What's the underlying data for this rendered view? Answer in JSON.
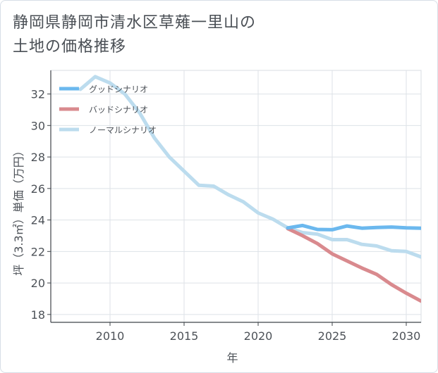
{
  "title": "静岡県静岡市清水区草薙一里山の\n土地の価格推移",
  "chart_data": {
    "type": "line",
    "xlabel": "年",
    "ylabel": "坪（3.3㎡）単価（万円）",
    "xlim": [
      2006,
      2031
    ],
    "ylim": [
      17.5,
      33.5
    ],
    "xticks": [
      2010,
      2015,
      2020,
      2025,
      2030
    ],
    "yticks": [
      18,
      20,
      22,
      24,
      26,
      28,
      30,
      32
    ],
    "grid": true,
    "legend_position": "top-left",
    "series": [
      {
        "name": "グッドシナリオ",
        "color": "#6bb8ee",
        "x": [
          2022,
          2023,
          2024,
          2025,
          2026,
          2027,
          2028,
          2029,
          2030,
          2031
        ],
        "y": [
          23.5,
          23.65,
          23.4,
          23.38,
          23.62,
          23.48,
          23.52,
          23.55,
          23.5,
          23.48
        ]
      },
      {
        "name": "バッドシナリオ",
        "color": "#d98a8e",
        "x": [
          2022,
          2023,
          2024,
          2025,
          2026,
          2027,
          2028,
          2029,
          2030,
          2031
        ],
        "y": [
          23.45,
          23.0,
          22.5,
          21.85,
          21.4,
          20.95,
          20.55,
          19.9,
          19.35,
          18.85
        ]
      },
      {
        "name": "ノーマルシナリオ",
        "color": "#bcdcee",
        "x": [
          2008,
          2009,
          2010,
          2011,
          2012,
          2013,
          2014,
          2015,
          2016,
          2017,
          2018,
          2019,
          2020,
          2021,
          2022,
          2023,
          2024,
          2025,
          2026,
          2027,
          2028,
          2029,
          2030,
          2031
        ],
        "y": [
          32.3,
          33.1,
          32.7,
          32.0,
          30.8,
          29.2,
          28.0,
          27.1,
          26.2,
          26.15,
          25.6,
          25.15,
          24.45,
          24.05,
          23.5,
          23.2,
          23.1,
          22.75,
          22.75,
          22.45,
          22.35,
          22.05,
          22.0,
          21.65
        ]
      }
    ]
  }
}
